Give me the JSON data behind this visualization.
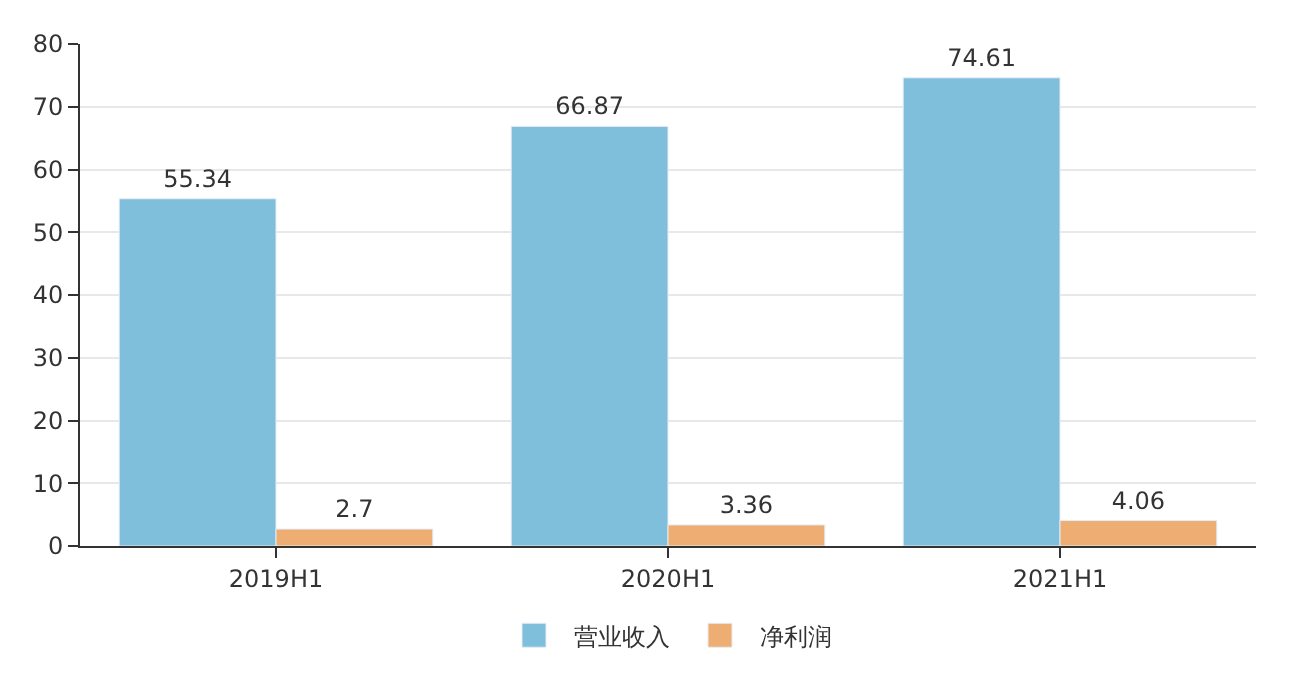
{
  "chart_data": {
    "type": "bar",
    "categories": [
      "2019H1",
      "2020H1",
      "2021H1"
    ],
    "series": [
      {
        "name": "营业收入",
        "color": "#7fbfdc",
        "values": [
          55.34,
          66.87,
          74.61
        ]
      },
      {
        "name": "净利润",
        "color": "#eeae73",
        "values": [
          2.7,
          3.36,
          4.06
        ]
      }
    ],
    "ylim": [
      0,
      80
    ],
    "yticks": [
      0,
      10,
      20,
      30,
      40,
      50,
      60,
      70,
      80
    ],
    "grid": "y",
    "legend": "bottom",
    "data_labels": true
  }
}
